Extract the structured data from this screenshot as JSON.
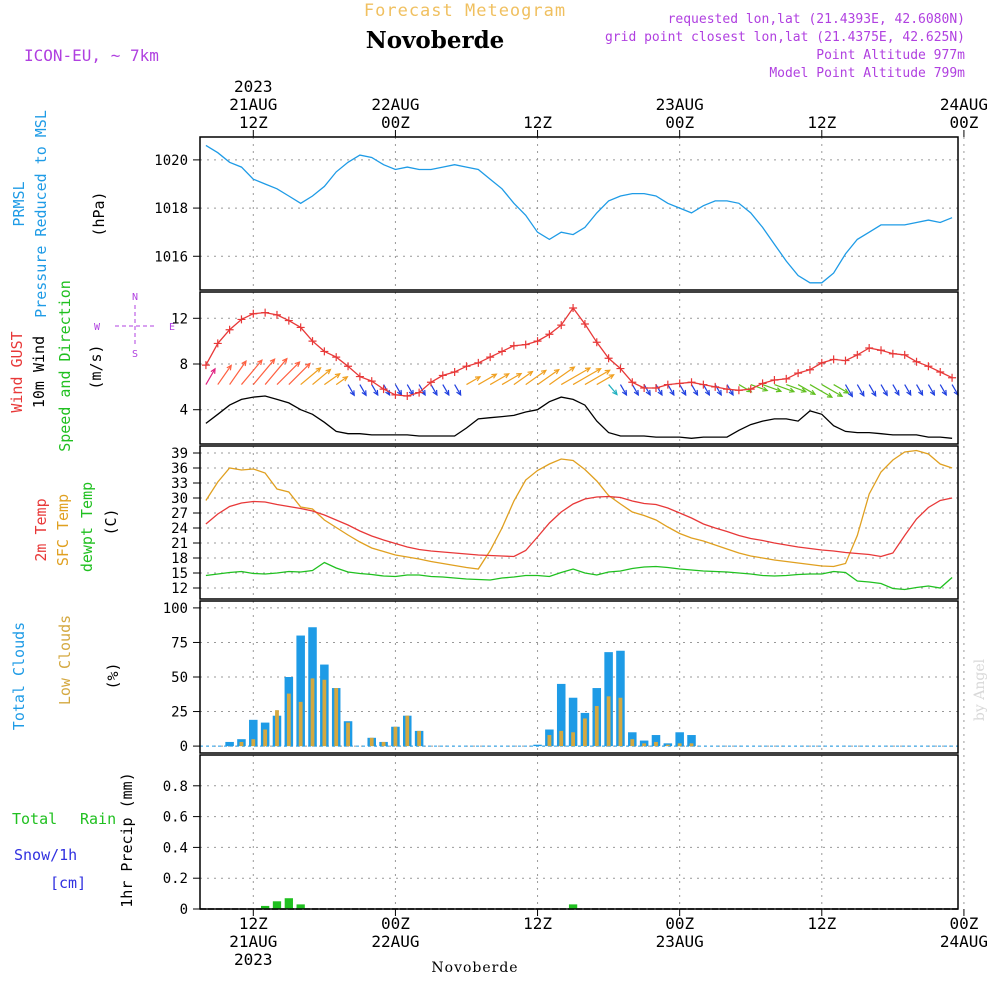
{
  "header": {
    "subtitle": "Forecast Meteogram",
    "location": "Novoberde",
    "model": "ICON-EU, ~ 7km",
    "requested": "requested lon,lat (21.4393E, 42.6080N)",
    "grid_point": "grid point closest lon,lat (21.4375E, 42.625N)",
    "point_alt": "Point Altitude 977m",
    "model_alt": "Model Point Altitude 799m",
    "footer_location": "Novoberde",
    "watermark": "by Angel"
  },
  "time_axis": {
    "top_labels": [
      {
        "h": 0,
        "lines": [
          "2023",
          "21AUG",
          "12Z"
        ]
      },
      {
        "h": 12,
        "lines": [
          "22AUG",
          "00Z"
        ]
      },
      {
        "h": 24,
        "lines": [
          "12Z"
        ]
      },
      {
        "h": 36,
        "lines": [
          "23AUG",
          "00Z"
        ]
      },
      {
        "h": 48,
        "lines": [
          "12Z"
        ]
      },
      {
        "h": 60,
        "lines": [
          "24AUG",
          "00Z"
        ]
      }
    ],
    "bottom_labels": [
      {
        "h": 0,
        "lines": [
          "12Z",
          "21AUG",
          "2023"
        ]
      },
      {
        "h": 12,
        "lines": [
          "00Z",
          "22AUG"
        ]
      },
      {
        "h": 24,
        "lines": [
          "12Z"
        ]
      },
      {
        "h": 36,
        "lines": [
          "00Z",
          "23AUG"
        ]
      },
      {
        "h": 48,
        "lines": [
          "12Z"
        ]
      },
      {
        "h": 60,
        "lines": [
          "00Z",
          "24AUG"
        ]
      }
    ]
  },
  "colors": {
    "pressure": "#1e9be6",
    "gust": "#e83838",
    "wind": "#000000",
    "temp": "#e83838",
    "sfc": "#e0a020",
    "dew": "#20c020",
    "total_cloud": "#1e9be6",
    "low_cloud": "#d4a840",
    "rain": "#20c020",
    "snow": "#3030e0",
    "compass": "#b040e0",
    "header_orange": "#f0c060",
    "header_purple": "#b040e0"
  },
  "panel_labels": {
    "pressure": {
      "line1": "PRMSL",
      "line2": "Pressure Reduced to MSL",
      "unit": "(hPa)"
    },
    "wind": {
      "gust": "Wind GUST",
      "wind": "10m Wind",
      "dir": "Speed and Direction",
      "unit": "(m/s)"
    },
    "compass": {
      "n": "N",
      "s": "S",
      "w": "W",
      "e": "E"
    },
    "temp": {
      "t2m": "2m Temp",
      "sfc": "SFC Temp",
      "dew": "dewpt Temp",
      "unit": "(C)"
    },
    "clouds": {
      "total": "Total Clouds",
      "low": "Low Clouds",
      "unit": "(%)"
    },
    "precip": {
      "total": "Total",
      "rain": "Rain",
      "snow": "Snow/1h",
      "cm": "[cm]",
      "axis": "1hr Precip (mm)"
    }
  },
  "chart_data": [
    {
      "type": "line",
      "name": "pressure",
      "title": "PRMSL Pressure Reduced to MSL",
      "ylabel": "hPa",
      "x_unit": "hours since 2023-08-21 12Z",
      "xlim": [
        -4.5,
        59.5
      ],
      "ylim": [
        1014.6,
        1020.95
      ],
      "yticks": [
        1016,
        1018,
        1020
      ],
      "x": [
        -4,
        -3,
        -2,
        -1,
        0,
        1,
        2,
        3,
        4,
        5,
        6,
        7,
        8,
        9,
        10,
        11,
        12,
        13,
        14,
        15,
        16,
        17,
        18,
        19,
        20,
        21,
        22,
        23,
        24,
        25,
        26,
        27,
        28,
        29,
        30,
        31,
        32,
        33,
        34,
        35,
        36,
        37,
        38,
        39,
        40,
        41,
        42,
        43,
        44,
        45,
        46,
        47,
        48,
        49,
        50,
        51,
        52,
        53,
        54,
        55,
        56,
        57,
        58,
        59
      ],
      "series": [
        {
          "name": "PRMSL",
          "values": [
            1020.6,
            1020.3,
            1019.9,
            1019.7,
            1019.2,
            1019.0,
            1018.8,
            1018.5,
            1018.2,
            1018.5,
            1018.9,
            1019.5,
            1019.9,
            1020.2,
            1020.1,
            1019.8,
            1019.6,
            1019.7,
            1019.6,
            1019.6,
            1019.7,
            1019.8,
            1019.7,
            1019.6,
            1019.2,
            1018.8,
            1018.2,
            1017.7,
            1017.0,
            1016.7,
            1017.0,
            1016.9,
            1017.2,
            1017.8,
            1018.3,
            1018.5,
            1018.6,
            1018.6,
            1018.5,
            1018.2,
            1018.0,
            1017.8,
            1018.1,
            1018.3,
            1018.3,
            1018.2,
            1017.8,
            1017.2,
            1016.5,
            1015.8,
            1015.2,
            1014.9,
            1014.9,
            1015.3,
            1016.1,
            1016.7,
            1017.0,
            1017.3,
            1017.3,
            1017.3,
            1017.4,
            1017.5,
            1017.4,
            1017.6
          ]
        }
      ]
    },
    {
      "type": "line",
      "name": "wind",
      "title": "Wind GUST / 10m Wind Speed and Direction",
      "ylabel": "m/s",
      "xlim": [
        -4.5,
        59.5
      ],
      "ylim": [
        1.0,
        14.3
      ],
      "yticks": [
        4,
        8,
        12
      ],
      "x": [
        -4,
        -3,
        -2,
        -1,
        0,
        1,
        2,
        3,
        4,
        5,
        6,
        7,
        8,
        9,
        10,
        11,
        12,
        13,
        14,
        15,
        16,
        17,
        18,
        19,
        20,
        21,
        22,
        23,
        24,
        25,
        26,
        27,
        28,
        29,
        30,
        31,
        32,
        33,
        34,
        35,
        36,
        37,
        38,
        39,
        40,
        41,
        42,
        43,
        44,
        45,
        46,
        47,
        48,
        49,
        50,
        51,
        52,
        53,
        54,
        55,
        56,
        57,
        58,
        59
      ],
      "series": [
        {
          "name": "Wind GUST",
          "values": [
            7.9,
            9.8,
            11.0,
            11.9,
            12.4,
            12.5,
            12.3,
            11.8,
            11.2,
            10.0,
            9.1,
            8.6,
            7.8,
            6.9,
            6.5,
            5.8,
            5.3,
            5.2,
            5.5,
            6.4,
            7.0,
            7.3,
            7.8,
            8.1,
            8.6,
            9.1,
            9.6,
            9.7,
            10.0,
            10.6,
            11.4,
            12.9,
            11.5,
            9.9,
            8.5,
            7.6,
            6.4,
            5.9,
            5.9,
            6.2,
            6.3,
            6.4,
            6.2,
            6.0,
            5.8,
            5.7,
            5.8,
            6.3,
            6.6,
            6.7,
            7.2,
            7.5,
            8.1,
            8.4,
            8.3,
            8.8,
            9.4,
            9.2,
            8.9,
            8.8,
            8.2,
            7.8,
            7.3,
            6.8
          ]
        },
        {
          "name": "10m Wind",
          "values": [
            2.8,
            3.6,
            4.4,
            4.9,
            5.1,
            5.2,
            4.9,
            4.6,
            4.0,
            3.6,
            2.9,
            2.1,
            1.9,
            1.9,
            1.8,
            1.8,
            1.8,
            1.8,
            1.7,
            1.7,
            1.7,
            1.7,
            2.4,
            3.2,
            3.3,
            3.4,
            3.5,
            3.8,
            4.0,
            4.7,
            5.1,
            4.9,
            4.4,
            3.0,
            2.0,
            1.7,
            1.7,
            1.7,
            1.6,
            1.6,
            1.6,
            1.5,
            1.6,
            1.6,
            1.6,
            2.2,
            2.7,
            3.0,
            3.2,
            3.2,
            3.0,
            3.9,
            3.6,
            2.6,
            2.1,
            2.0,
            2.0,
            1.9,
            1.8,
            1.8,
            1.8,
            1.6,
            1.6,
            1.5
          ]
        }
      ],
      "wind_direction_from_deg": [
        210,
        215,
        215,
        220,
        220,
        220,
        225,
        225,
        230,
        230,
        235,
        235,
        330,
        330,
        330,
        330,
        330,
        330,
        330,
        330,
        330,
        330,
        240,
        240,
        240,
        240,
        235,
        235,
        235,
        235,
        240,
        240,
        240,
        240,
        320,
        330,
        330,
        330,
        330,
        330,
        330,
        330,
        330,
        330,
        330,
        300,
        290,
        290,
        290,
        290,
        300,
        300,
        300,
        300,
        330,
        330,
        330,
        330,
        330,
        330,
        330,
        330,
        330,
        330
      ]
    },
    {
      "type": "line",
      "name": "temperature",
      "title": "2m Temp / SFC Temp / dewpt Temp",
      "ylabel": "C",
      "xlim": [
        -4.5,
        59.5
      ],
      "ylim": [
        9.8,
        40.4
      ],
      "yticks": [
        12,
        15,
        18,
        21,
        24,
        27,
        30,
        33,
        36,
        39
      ],
      "x": [
        -4,
        -3,
        -2,
        -1,
        0,
        1,
        2,
        3,
        4,
        5,
        6,
        7,
        8,
        9,
        10,
        11,
        12,
        13,
        14,
        15,
        16,
        17,
        18,
        19,
        20,
        21,
        22,
        23,
        24,
        25,
        26,
        27,
        28,
        29,
        30,
        31,
        32,
        33,
        34,
        35,
        36,
        37,
        38,
        39,
        40,
        41,
        42,
        43,
        44,
        45,
        46,
        47,
        48,
        49,
        50,
        51,
        52,
        53,
        54,
        55,
        56,
        57,
        58,
        59
      ],
      "series": [
        {
          "name": "2m Temp",
          "values": [
            24.8,
            26.8,
            28.3,
            29.0,
            29.3,
            29.2,
            28.7,
            28.3,
            27.9,
            27.4,
            26.6,
            25.6,
            24.6,
            23.4,
            22.4,
            21.6,
            20.9,
            20.2,
            19.7,
            19.4,
            19.2,
            19.0,
            18.8,
            18.6,
            18.5,
            18.4,
            18.3,
            19.5,
            22.2,
            25.0,
            27.2,
            28.8,
            29.8,
            30.2,
            30.3,
            30.1,
            29.4,
            28.9,
            28.7,
            28.0,
            27.0,
            26.0,
            24.8,
            24.0,
            23.3,
            22.5,
            21.9,
            21.5,
            21.0,
            20.6,
            20.2,
            19.9,
            19.6,
            19.4,
            19.1,
            18.9,
            18.7,
            18.3,
            19.0,
            22.5,
            25.8,
            28.1,
            29.5,
            30.0
          ]
        },
        {
          "name": "SFC Temp",
          "values": [
            29.5,
            33.2,
            36.0,
            35.6,
            35.8,
            35.0,
            31.8,
            31.2,
            28.2,
            27.8,
            25.6,
            24.1,
            22.6,
            21.2,
            20.0,
            19.3,
            18.6,
            18.2,
            17.8,
            17.3,
            16.9,
            16.5,
            16.1,
            15.8,
            19.5,
            24.0,
            29.4,
            33.6,
            35.5,
            36.8,
            37.8,
            37.5,
            35.7,
            33.4,
            30.5,
            28.8,
            27.2,
            26.5,
            25.6,
            24.2,
            22.9,
            22.0,
            21.4,
            20.6,
            19.8,
            19.0,
            18.4,
            18.0,
            17.6,
            17.3,
            17.0,
            16.7,
            16.4,
            16.3,
            16.9,
            22.5,
            30.8,
            35.2,
            37.6,
            39.2,
            39.5,
            38.8,
            36.8,
            36.0
          ]
        },
        {
          "name": "dewpt Temp",
          "values": [
            14.5,
            14.8,
            15.1,
            15.3,
            14.9,
            14.8,
            15.0,
            15.3,
            15.2,
            15.5,
            17.1,
            16.0,
            15.2,
            14.9,
            14.7,
            14.4,
            14.3,
            14.6,
            14.6,
            14.3,
            14.2,
            14.0,
            13.8,
            13.7,
            13.6,
            14.0,
            14.2,
            14.5,
            14.5,
            14.3,
            15.1,
            15.8,
            15.0,
            14.6,
            15.2,
            15.4,
            15.9,
            16.2,
            16.3,
            16.1,
            15.8,
            15.6,
            15.4,
            15.3,
            15.2,
            15.0,
            14.8,
            14.5,
            14.4,
            14.5,
            14.7,
            14.8,
            14.8,
            15.3,
            15.1,
            13.4,
            13.2,
            12.9,
            11.9,
            11.7,
            12.1,
            12.4,
            12.0,
            14.1
          ]
        }
      ]
    },
    {
      "type": "bar",
      "name": "clouds",
      "title": "Total Clouds / Low Clouds",
      "ylabel": "%",
      "xlim": [
        -4.5,
        59.5
      ],
      "ylim": [
        -5,
        105
      ],
      "yticks": [
        0,
        25,
        50,
        75,
        100
      ],
      "x": [
        -4,
        -3,
        -2,
        -1,
        0,
        1,
        2,
        3,
        4,
        5,
        6,
        7,
        8,
        9,
        10,
        11,
        12,
        13,
        14,
        15,
        16,
        17,
        18,
        19,
        20,
        21,
        22,
        23,
        24,
        25,
        26,
        27,
        28,
        29,
        30,
        31,
        32,
        33,
        34,
        35,
        36,
        37,
        38,
        39,
        40,
        41,
        42,
        43,
        44,
        45,
        46,
        47,
        48,
        49,
        50,
        51,
        52,
        53,
        54,
        55,
        56,
        57,
        58,
        59
      ],
      "series": [
        {
          "name": "Total Clouds",
          "values": [
            0,
            0,
            3,
            5,
            19,
            17,
            22,
            50,
            80,
            86,
            59,
            42,
            18,
            0,
            6,
            3,
            14,
            22,
            11,
            0,
            0,
            0,
            0,
            0,
            0,
            0,
            0,
            0,
            1,
            12,
            45,
            35,
            24,
            42,
            68,
            69,
            10,
            4,
            8,
            2,
            10,
            8,
            0,
            0,
            0,
            0,
            0,
            0,
            0,
            0,
            0,
            0,
            0,
            0,
            0,
            0,
            0,
            0,
            0,
            0,
            0,
            0,
            0,
            0
          ]
        },
        {
          "name": "Low Clouds",
          "values": [
            0,
            0,
            0,
            3,
            5,
            12,
            26,
            38,
            32,
            49,
            48,
            42,
            17,
            0,
            6,
            3,
            14,
            22,
            11,
            0,
            0,
            0,
            0,
            0,
            0,
            0,
            0,
            0,
            0,
            8,
            11,
            10,
            20,
            29,
            36,
            35,
            5,
            2,
            3,
            1,
            2,
            2,
            0,
            0,
            0,
            0,
            0,
            0,
            0,
            0,
            0,
            0,
            0,
            0,
            0,
            0,
            0,
            0,
            0,
            0,
            0,
            0,
            0,
            0
          ]
        }
      ]
    },
    {
      "type": "bar",
      "name": "precip",
      "title": "1hr Precip (mm)",
      "ylabel": "mm",
      "xlim": [
        -4.5,
        59.5
      ],
      "ylim": [
        0,
        1.0
      ],
      "yticks": [
        0,
        0.2,
        0.4,
        0.6,
        0.8
      ],
      "x": [
        -4,
        -3,
        -2,
        -1,
        0,
        1,
        2,
        3,
        4,
        5,
        6,
        7,
        8,
        9,
        10,
        11,
        12,
        13,
        14,
        15,
        16,
        17,
        18,
        19,
        20,
        21,
        22,
        23,
        24,
        25,
        26,
        27,
        28,
        29,
        30,
        31,
        32,
        33,
        34,
        35,
        36,
        37,
        38,
        39,
        40,
        41,
        42,
        43,
        44,
        45,
        46,
        47,
        48,
        49,
        50,
        51,
        52,
        53,
        54,
        55,
        56,
        57,
        58,
        59
      ],
      "series": [
        {
          "name": "Total Rain",
          "values": [
            0,
            0,
            0,
            0,
            0,
            0.02,
            0.05,
            0.07,
            0.03,
            0,
            0,
            0,
            0,
            0,
            0,
            0,
            0,
            0,
            0,
            0,
            0,
            0,
            0,
            0,
            0,
            0,
            0,
            0,
            0,
            0,
            0,
            0.03,
            0,
            0,
            0,
            0,
            0,
            0,
            0,
            0,
            0,
            0,
            0,
            0,
            0,
            0,
            0,
            0,
            0,
            0,
            0,
            0,
            0,
            0,
            0,
            0,
            0,
            0,
            0,
            0,
            0,
            0,
            0,
            0
          ]
        }
      ]
    }
  ]
}
